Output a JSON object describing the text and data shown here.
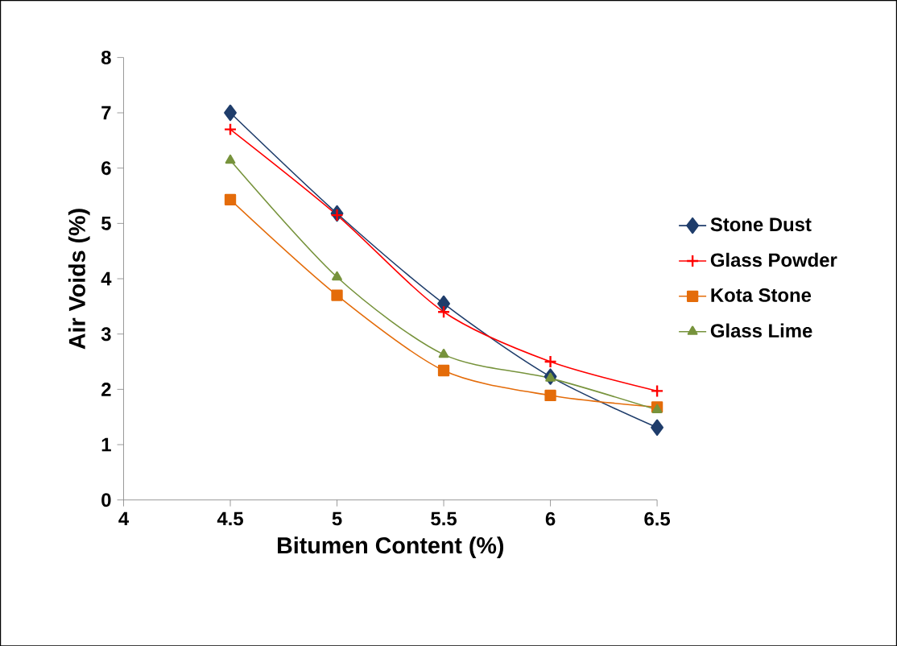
{
  "chart_data": {
    "type": "line",
    "xlabel": "Bitumen Content (%)",
    "ylabel": "Air Voids (%)",
    "x": [
      4.5,
      5,
      5.5,
      6,
      6.5
    ],
    "series": [
      {
        "name": "Stone Dust",
        "color": "#1f3d6b",
        "marker": "diamond",
        "values": [
          7.0,
          5.18,
          3.55,
          2.23,
          1.31
        ]
      },
      {
        "name": "Glass Powder",
        "color": "#ff0000",
        "marker": "cross",
        "values": [
          6.7,
          5.15,
          3.4,
          2.5,
          1.97
        ]
      },
      {
        "name": "Kota Stone",
        "color": "#e46c0a",
        "marker": "square",
        "values": [
          5.43,
          3.7,
          2.34,
          1.89,
          1.68
        ]
      },
      {
        "name": "Glass Lime",
        "color": "#77933c",
        "marker": "triangle",
        "values": [
          6.14,
          4.03,
          2.63,
          2.2,
          1.63
        ]
      }
    ],
    "xlim": [
      4,
      6.5
    ],
    "xticks": [
      4,
      4.5,
      5,
      5.5,
      6,
      6.5
    ],
    "ylim": [
      0,
      8
    ],
    "yticks": [
      0,
      1,
      2,
      3,
      4,
      5,
      6,
      7,
      8
    ],
    "grid": false,
    "legend": "right"
  }
}
